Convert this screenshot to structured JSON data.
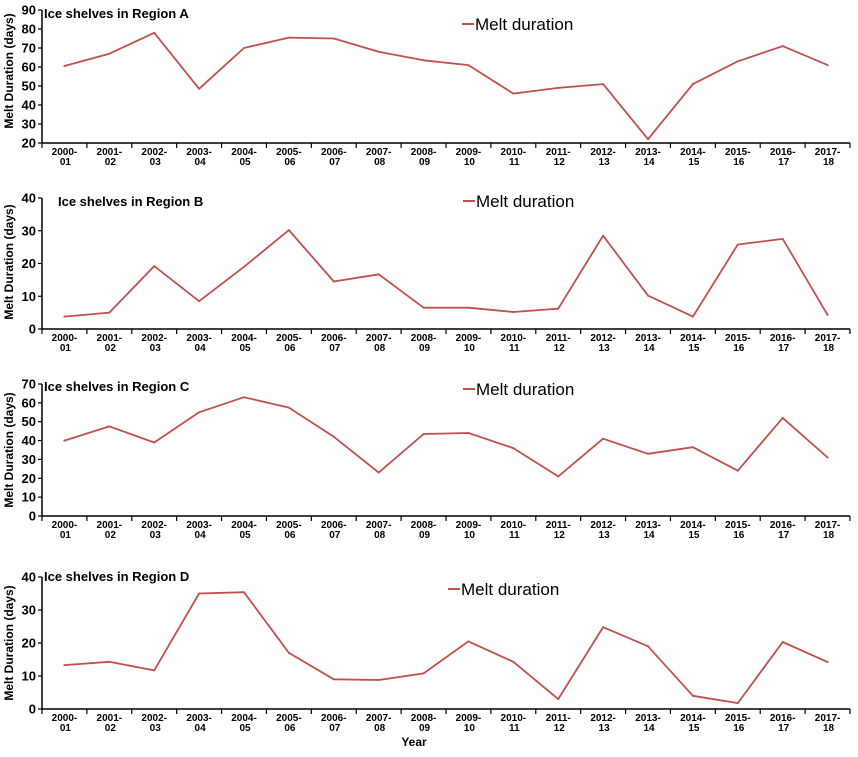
{
  "chart_data": {
    "type": "line",
    "x_title": "Year",
    "y_title": "Melt Duration (days)",
    "legend_label": "Melt duration",
    "line_color": "#c0504d",
    "categories": [
      [
        "2000-",
        "01"
      ],
      [
        "2001-",
        "02"
      ],
      [
        "2002-",
        "03"
      ],
      [
        "2003-",
        "04"
      ],
      [
        "2004-",
        "05"
      ],
      [
        "2005-",
        "06"
      ],
      [
        "2006-",
        "07"
      ],
      [
        "2007-",
        "08"
      ],
      [
        "2008-",
        "09"
      ],
      [
        "2009-",
        "10"
      ],
      [
        "2010-",
        "11"
      ],
      [
        "2011-",
        "12"
      ],
      [
        "2012-",
        "13"
      ],
      [
        "2013-",
        "14"
      ],
      [
        "2014-",
        "15"
      ],
      [
        "2015-",
        "16"
      ],
      [
        "2016-",
        "17"
      ],
      [
        "2017-",
        "18"
      ]
    ],
    "panels": [
      {
        "title": "Ice shelves in Region A",
        "ylim": [
          20,
          90
        ],
        "yticks": [
          20,
          30,
          40,
          50,
          60,
          70,
          80,
          90
        ],
        "values": [
          60.5,
          67,
          78,
          48.5,
          70,
          75.5,
          75,
          68,
          63.5,
          61,
          46,
          49,
          51,
          22,
          51,
          63,
          71,
          61
        ]
      },
      {
        "title": "Ice shelves in Region B",
        "ylim": [
          0,
          40
        ],
        "yticks": [
          0,
          10,
          20,
          30,
          40
        ],
        "values": [
          3.8,
          5,
          19.2,
          8.5,
          19,
          30.2,
          14.5,
          16.7,
          6.5,
          6.5,
          5.2,
          6.2,
          28.5,
          10.2,
          3.8,
          25.8,
          27.5,
          4.3
        ]
      },
      {
        "title": "Ice shelves in Region C",
        "ylim": [
          0,
          70
        ],
        "yticks": [
          0,
          10,
          20,
          30,
          40,
          50,
          60,
          70
        ],
        "values": [
          40,
          47.5,
          39,
          55,
          63,
          57.5,
          42,
          23,
          43.5,
          44,
          36,
          21,
          41,
          33,
          36.5,
          24,
          52,
          31
        ]
      },
      {
        "title": "Ice shelves in Region D",
        "ylim": [
          0,
          40
        ],
        "yticks": [
          0,
          10,
          20,
          30,
          40
        ],
        "values": [
          13.3,
          14.3,
          11.7,
          35,
          35.4,
          17,
          9,
          8.8,
          10.8,
          20.5,
          14.3,
          3,
          24.8,
          19,
          4,
          1.8,
          20.3,
          14.2
        ]
      }
    ]
  }
}
